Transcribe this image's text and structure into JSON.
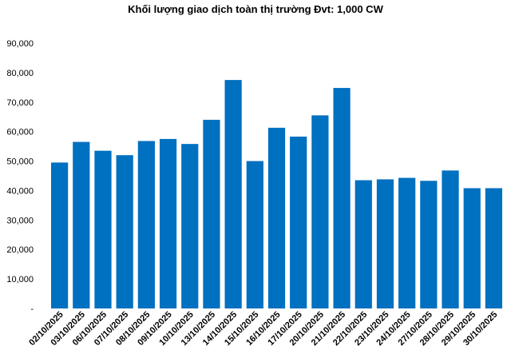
{
  "chart_data": {
    "type": "bar",
    "title": "Khối lượng giao dịch toàn thị trường Đvt: 1,000 CW",
    "xlabel": "",
    "ylabel": "",
    "ylim": [
      0,
      90000
    ],
    "yticks": [
      "-",
      "10,000",
      "20,000",
      "30,000",
      "40,000",
      "50,000",
      "60,000",
      "70,000",
      "80,000",
      "90,000"
    ],
    "grid": false,
    "color": "#0070c0",
    "categories": [
      "02/10/2025",
      "03/10/2025",
      "06/10/2025",
      "07/10/2025",
      "08/10/2025",
      "09/10/2025",
      "10/10/2025",
      "13/10/2025",
      "14/10/2025",
      "15/10/2025",
      "16/10/2025",
      "17/10/2025",
      "20/10/2025",
      "21/10/2025",
      "22/10/2025",
      "23/10/2025",
      "24/10/2025",
      "27/10/2025",
      "28/10/2025",
      "29/10/2025",
      "30/10/2025"
    ],
    "values": [
      49500,
      56500,
      53500,
      52000,
      56800,
      57500,
      55800,
      64000,
      77500,
      50000,
      61300,
      58300,
      65500,
      74800,
      43500,
      43800,
      44300,
      43300,
      46800,
      40800,
      40800
    ]
  }
}
